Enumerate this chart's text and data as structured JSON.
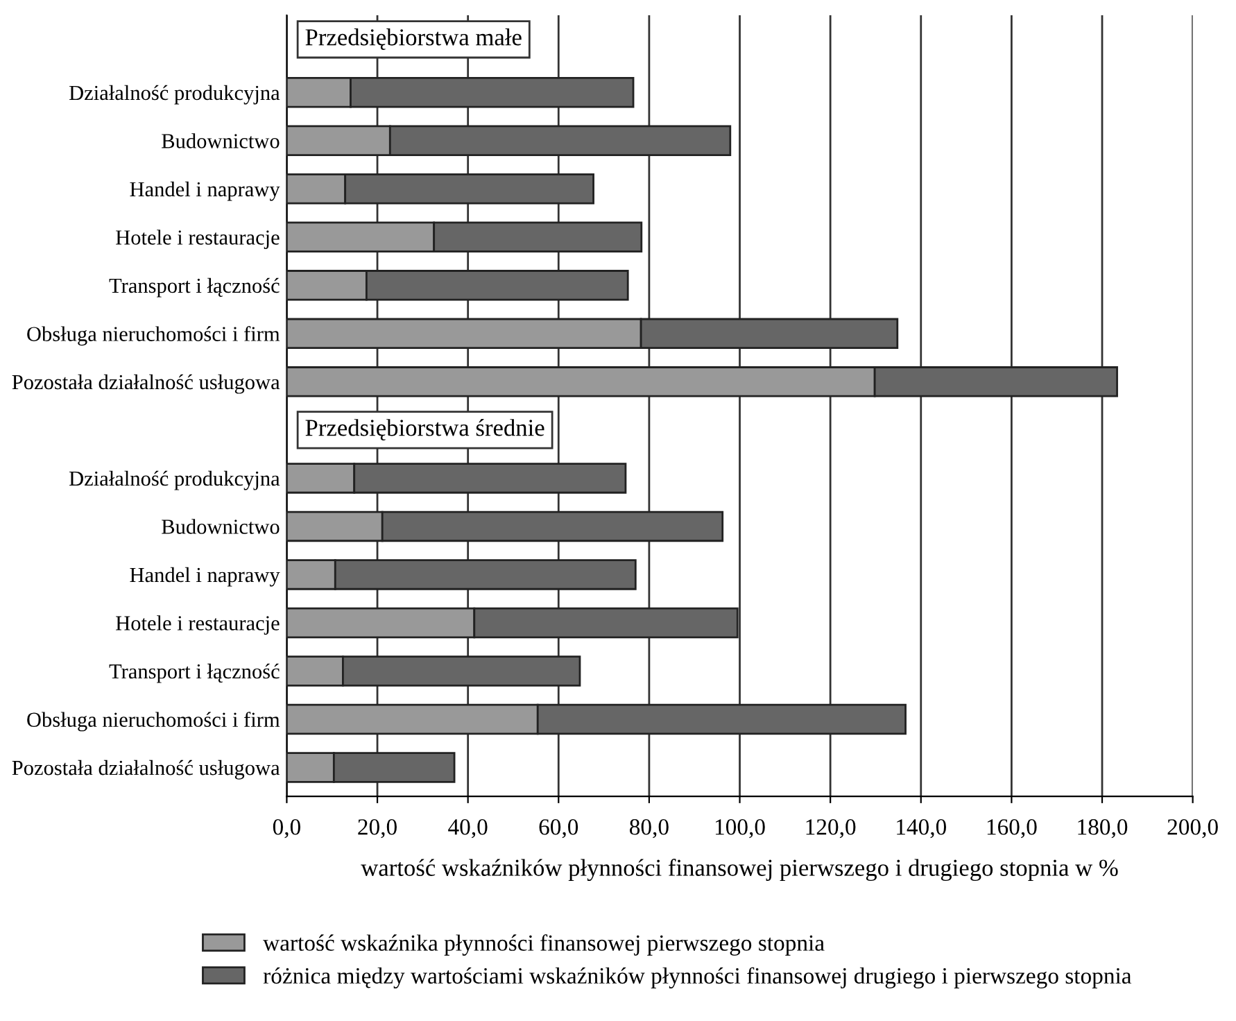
{
  "chart_data": {
    "type": "bar",
    "orientation": "horizontal",
    "stacked": true,
    "categories": [
      "Działalność produkcyjna",
      "Budownictwo",
      "Handel i naprawy",
      "Hotele i restauracje",
      "Transport i łączność",
      "Obsługa nieruchomości i firm",
      "Pozostała działalność usługowa",
      null,
      "Działalność produkcyjna",
      "Budownictwo",
      "Handel i naprawy",
      "Hotele i restauracje",
      "Transport i łączność",
      "Obsługa nieruchomości i firm",
      "Pozostała działalność usługowa"
    ],
    "series": [
      {
        "name": "wartość wskaźnika płynności finansowej pierwszego stopnia",
        "color": "#999999",
        "values": [
          14.1,
          22.8,
          12.9,
          32.5,
          17.6,
          78.2,
          129.8,
          null,
          14.9,
          21.1,
          10.7,
          41.4,
          12.4,
          55.4,
          10.4
        ]
      },
      {
        "name": "różnica między wartościami wskaźników płynności finansowej drugiego i pierwszego stopnia",
        "color": "#666666",
        "values": [
          62.4,
          75.1,
          54.8,
          45.8,
          57.7,
          56.6,
          53.5,
          null,
          59.9,
          75.1,
          66.3,
          58.1,
          52.3,
          81.2,
          26.6
        ]
      }
    ],
    "xlabel": "wartość wskaźników płynności finansowej pierwszego i drugiego stopnia w %",
    "xlim": [
      0,
      200
    ],
    "xticks": [
      {
        "value": 0,
        "label": "0,0"
      },
      {
        "value": 20,
        "label": "20,0"
      },
      {
        "value": 40,
        "label": "40,0"
      },
      {
        "value": 60,
        "label": "60,0"
      },
      {
        "value": 80,
        "label": "80,0"
      },
      {
        "value": 100,
        "label": "100,0"
      },
      {
        "value": 120,
        "label": "120,0"
      },
      {
        "value": 140,
        "label": "140,0"
      },
      {
        "value": 160,
        "label": "160,0"
      },
      {
        "value": 180,
        "label": "180,0"
      },
      {
        "value": 200,
        "label": "200,0"
      }
    ],
    "annotations": [
      "Przedsiębiorstwa małe",
      "Przedsiębiorstwa średnie"
    ],
    "grid": "x",
    "legend": "bottom"
  }
}
